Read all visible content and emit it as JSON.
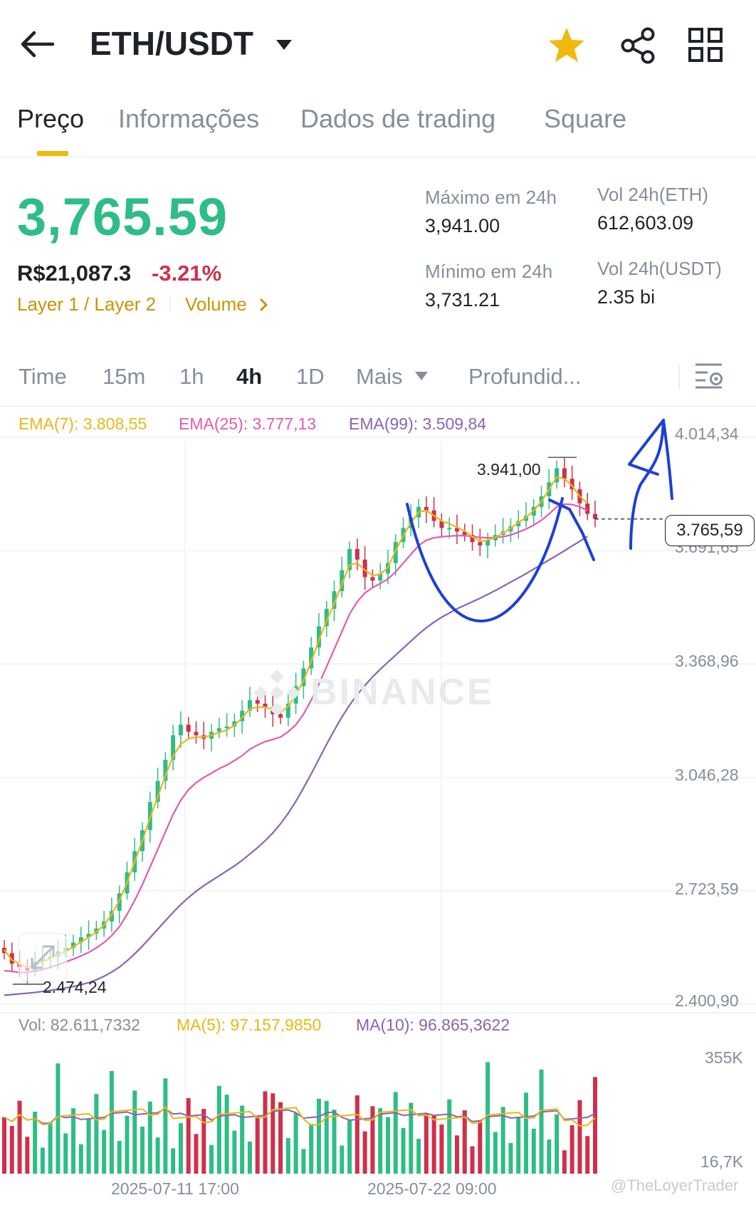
{
  "header": {
    "pair": "ETH/USDT"
  },
  "tabs": [
    {
      "label": "Preço",
      "active": true
    },
    {
      "label": "Informações",
      "active": false
    },
    {
      "label": "Dados de trading",
      "active": false
    },
    {
      "label": "Square",
      "active": false
    }
  ],
  "ticker": {
    "last_price": "3,765.59",
    "fiat_price": "R$21,087.3",
    "change_pct": "-3.21%",
    "tag_category": "Layer 1 / Layer 2",
    "tag_volume": "Volume",
    "stats": {
      "high_label": "Máximo em 24h",
      "high_value": "3,941.00",
      "low_label": "Mínimo em 24h",
      "low_value": "3,731.21",
      "vol_eth_label": "Vol 24h(ETH)",
      "vol_eth_value": "612,603.09",
      "vol_usdt_label": "Vol 24h(USDT)",
      "vol_usdt_value": "2.35 bi"
    }
  },
  "intervals": [
    {
      "label": "Time",
      "active": false
    },
    {
      "label": "15m",
      "active": false
    },
    {
      "label": "1h",
      "active": false
    },
    {
      "label": "4h",
      "active": true
    },
    {
      "label": "1D",
      "active": false
    },
    {
      "label": "Mais",
      "active": false
    },
    {
      "label": "Profundid...",
      "active": false
    }
  ],
  "indicators": {
    "ema7": "EMA(7): 3.808,55",
    "ema25": "EMA(25): 3.777,13",
    "ema99": "EMA(99): 3.509,84",
    "vol": "Vol: 82.611,7332",
    "ma5": "MA(5): 97.157,9850",
    "ma10": "MA(10): 96.865,3622"
  },
  "colors": {
    "up": "#2ebd85",
    "down": "#cf304a",
    "ema7": "#e8b816",
    "ema25": "#e05ab4",
    "ema99": "#8a63b4",
    "accent": "#f0b90b",
    "annotation": "#1d3fd8"
  },
  "watermark": "BINANCE",
  "current_price_tag": "3.765,59",
  "footer_credit": "@TheLoyerTrader",
  "chart_data": {
    "type": "candlestick",
    "title": "",
    "price_axis_ticks": [
      "4.014,34",
      "3.691,65",
      "3.368,96",
      "3.046,28",
      "2.723,59",
      "2.400,90"
    ],
    "price_axis_values": [
      4014.34,
      3691.65,
      3368.96,
      3046.28,
      2723.59,
      2400.9
    ],
    "ylim": [
      2400.9,
      4014.34
    ],
    "volume_axis_ticks": [
      "355K",
      "16,7K"
    ],
    "volume_axis_values": [
      355000,
      16700
    ],
    "x_ticks": [
      "2025-07-11 17:00",
      "2025-07-22 09:00"
    ],
    "period_high_label": "3.941,00",
    "period_high": 3941.0,
    "period_low_label": "2.474,24",
    "period_low": 2474.24,
    "current_price": 3765.59,
    "close": [
      2530,
      2500,
      2490,
      2480,
      2505,
      2515,
      2520,
      2535,
      2545,
      2560,
      2575,
      2585,
      2600,
      2620,
      2650,
      2700,
      2760,
      2820,
      2880,
      2960,
      3020,
      3080,
      3150,
      3180,
      3160,
      3150,
      3140,
      3160,
      3170,
      3175,
      3190,
      3220,
      3250,
      3240,
      3230,
      3210,
      3200,
      3240,
      3290,
      3340,
      3400,
      3460,
      3510,
      3560,
      3620,
      3680,
      3650,
      3600,
      3590,
      3610,
      3640,
      3700,
      3740,
      3770,
      3800,
      3790,
      3760,
      3740,
      3740,
      3730,
      3720,
      3700,
      3690,
      3705,
      3720,
      3730,
      3745,
      3760,
      3775,
      3800,
      3830,
      3870,
      3910,
      3880,
      3850,
      3810,
      3780,
      3765.59
    ],
    "ema7": [
      2540,
      2510,
      2500,
      2490,
      2495,
      2505,
      2515,
      2525,
      2535,
      2548,
      2562,
      2575,
      2590,
      2610,
      2640,
      2680,
      2730,
      2790,
      2850,
      2915,
      2975,
      3035,
      3090,
      3125,
      3140,
      3145,
      3145,
      3150,
      3158,
      3165,
      3178,
      3200,
      3225,
      3230,
      3230,
      3222,
      3215,
      3232,
      3265,
      3305,
      3360,
      3420,
      3475,
      3525,
      3580,
      3635,
      3640,
      3620,
      3605,
      3608,
      3628,
      3675,
      3718,
      3755,
      3785,
      3790,
      3775,
      3760,
      3752,
      3742,
      3732,
      3715,
      3702,
      3705,
      3714,
      3725,
      3740,
      3755,
      3770,
      3790,
      3815,
      3850,
      3885,
      3880,
      3860,
      3830,
      3810,
      3808.55
    ],
    "ema25": [
      2480,
      2478,
      2475,
      2475,
      2478,
      2483,
      2490,
      2497,
      2505,
      2513,
      2522,
      2532,
      2545,
      2560,
      2580,
      2605,
      2640,
      2680,
      2725,
      2775,
      2825,
      2875,
      2925,
      2965,
      2995,
      3015,
      3030,
      3042,
      3055,
      3065,
      3078,
      3092,
      3110,
      3122,
      3132,
      3138,
      3145,
      3160,
      3180,
      3210,
      3250,
      3295,
      3345,
      3395,
      3445,
      3495,
      3530,
      3555,
      3570,
      3582,
      3595,
      3615,
      3640,
      3665,
      3690,
      3705,
      3712,
      3715,
      3717,
      3718,
      3718,
      3716,
      3713,
      3712,
      3713,
      3715,
      3720,
      3728,
      3737,
      3748,
      3762,
      3780,
      3800,
      3808,
      3807,
      3800,
      3790,
      3777.13
    ],
    "ema99": [
      2410,
      2412,
      2414,
      2416,
      2418,
      2421,
      2424,
      2427,
      2431,
      2435,
      2440,
      2446,
      2454,
      2464,
      2476,
      2490,
      2508,
      2528,
      2550,
      2574,
      2598,
      2622,
      2646,
      2668,
      2688,
      2706,
      2722,
      2736,
      2750,
      2764,
      2778,
      2794,
      2812,
      2830,
      2850,
      2872,
      2898,
      2928,
      2962,
      3000,
      3040,
      3082,
      3124,
      3164,
      3202,
      3236,
      3266,
      3292,
      3316,
      3338,
      3358,
      3378,
      3398,
      3418,
      3438,
      3456,
      3472,
      3486,
      3498,
      3510,
      3520,
      3530,
      3540,
      3551,
      3562,
      3574,
      3586,
      3598,
      3610,
      3623,
      3636,
      3649,
      3662,
      3675,
      3689,
      3702,
      3716,
      3509.84
    ]
  }
}
